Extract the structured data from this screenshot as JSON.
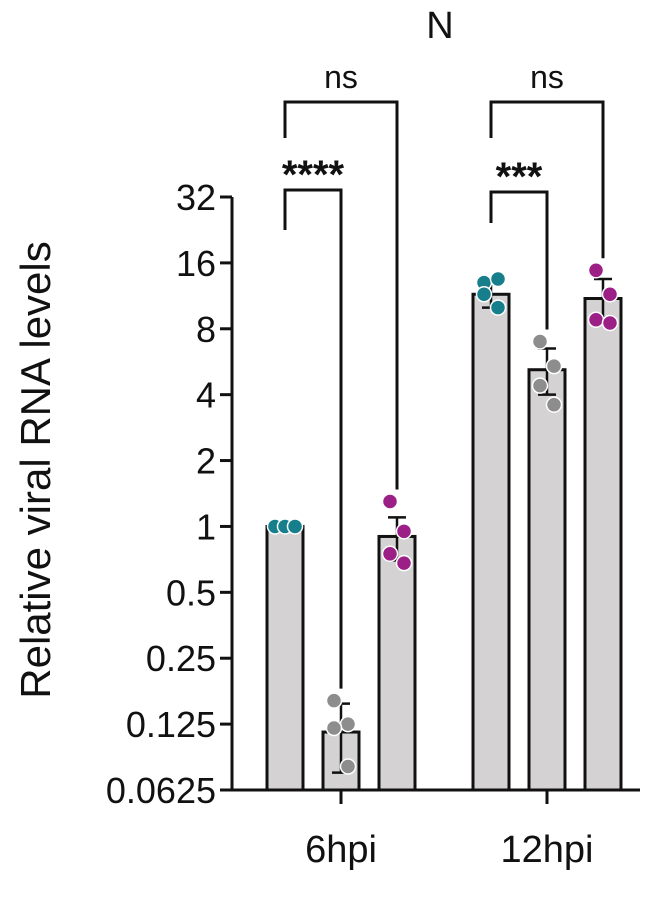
{
  "chart_data": {
    "type": "bar",
    "title": "N",
    "ylabel": "Relative viral RNA levels",
    "xlabel": "",
    "yscale": "log2",
    "ylim": [
      0.0625,
      32
    ],
    "yticks": [
      {
        "value": 32,
        "label": "32"
      },
      {
        "value": 16,
        "label": "16"
      },
      {
        "value": 8,
        "label": "8"
      },
      {
        "value": 4,
        "label": "4"
      },
      {
        "value": 2,
        "label": "2"
      },
      {
        "value": 1,
        "label": "1"
      },
      {
        "value": 0.5,
        "label": "0.5"
      },
      {
        "value": 0.25,
        "label": "0.25"
      },
      {
        "value": 0.125,
        "label": "0.125"
      },
      {
        "value": 0.0625,
        "label": "0.0625"
      }
    ],
    "grid": false,
    "legend": "none",
    "groups": [
      {
        "label": "6hpi",
        "bars": [
          {
            "mean": 1.0,
            "err": [
              1.0,
              1.0
            ],
            "points": [
              1.0,
              1.0,
              1.0
            ],
            "color": "#177e8c"
          },
          {
            "mean": 0.115,
            "err": [
              0.075,
              0.155
            ],
            "points": [
              0.16,
              0.125,
              0.12,
              0.08
            ],
            "color": "#8d8d8d"
          },
          {
            "mean": 0.9,
            "err": [
              0.7,
              1.1
            ],
            "points": [
              1.3,
              0.95,
              0.75,
              0.68
            ],
            "color": "#9c1f86"
          }
        ]
      },
      {
        "label": "12hpi",
        "bars": [
          {
            "mean": 11.5,
            "err": [
              10.0,
              13.0
            ],
            "points": [
              13.0,
              13.5,
              11.5,
              10.0
            ],
            "color": "#177e8c"
          },
          {
            "mean": 5.2,
            "err": [
              4.0,
              6.5
            ],
            "points": [
              7.0,
              5.4,
              4.4,
              3.6
            ],
            "color": "#8d8d8d"
          },
          {
            "mean": 11.0,
            "err": [
              8.5,
              13.5
            ],
            "points": [
              14.8,
              11.5,
              8.8,
              8.5
            ],
            "color": "#9c1f86"
          }
        ]
      }
    ],
    "comparisons": [
      {
        "group": 0,
        "from": 0,
        "to": 1,
        "label": "****"
      },
      {
        "group": 0,
        "from": 0,
        "to": 2,
        "label": "ns"
      },
      {
        "group": 1,
        "from": 0,
        "to": 1,
        "label": "***"
      },
      {
        "group": 1,
        "from": 0,
        "to": 2,
        "label": "ns"
      }
    ],
    "bar_color": "#d4d2d2"
  }
}
